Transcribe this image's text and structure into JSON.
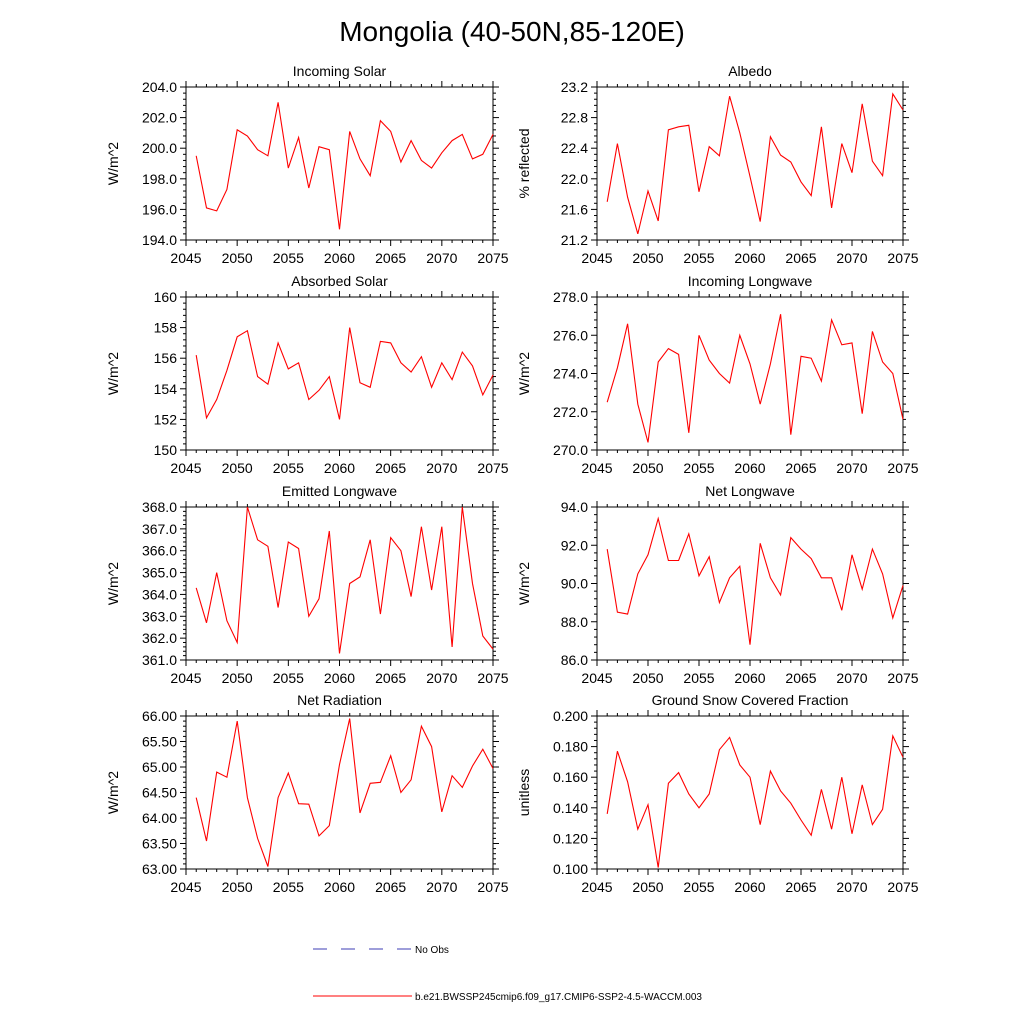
{
  "page_title": "Mongolia (40-50N,85-120E)",
  "legend": {
    "obs_label": "No Obs",
    "obs_color": "#3d3db5",
    "model_label": "b.e21.BWSSP245cmip6.f09_g17.CMIP6-SSP2-4.5-WACCM.003",
    "model_color": "#ff0000"
  },
  "chart_data": [
    {
      "type": "line",
      "title": "Incoming Solar",
      "ylabel": "W/m^2",
      "xlim": [
        2045,
        2075
      ],
      "ylim": [
        194.0,
        204.0
      ],
      "yticks": [
        "194.0",
        "196.0",
        "198.0",
        "200.0",
        "202.0",
        "204.0"
      ],
      "xticks": [
        "2045",
        "2050",
        "2055",
        "2060",
        "2065",
        "2070",
        "2075"
      ],
      "x": [
        2046,
        2047,
        2048,
        2049,
        2050,
        2051,
        2052,
        2053,
        2054,
        2055,
        2056,
        2057,
        2058,
        2059,
        2060,
        2061,
        2062,
        2063,
        2064,
        2065,
        2066,
        2067,
        2068,
        2069,
        2070,
        2071,
        2072,
        2073,
        2074,
        2075
      ],
      "values": [
        199.5,
        196.1,
        195.9,
        197.3,
        201.2,
        200.8,
        199.9,
        199.5,
        203.0,
        198.7,
        200.7,
        197.4,
        200.1,
        199.9,
        194.7,
        201.1,
        199.3,
        198.2,
        201.8,
        201.1,
        199.1,
        200.5,
        199.2,
        198.7,
        199.7,
        200.5,
        200.9,
        199.3,
        199.6,
        200.9
      ],
      "color": "#ff0000"
    },
    {
      "type": "line",
      "title": "Albedo",
      "ylabel": "% reflected",
      "xlim": [
        2045,
        2075
      ],
      "ylim": [
        21.2,
        23.2
      ],
      "yticks": [
        "21.2",
        "21.6",
        "22.0",
        "22.4",
        "22.8",
        "23.2"
      ],
      "xticks": [
        "2045",
        "2050",
        "2055",
        "2060",
        "2065",
        "2070",
        "2075"
      ],
      "x": [
        2046,
        2047,
        2048,
        2049,
        2050,
        2051,
        2052,
        2053,
        2054,
        2055,
        2056,
        2057,
        2058,
        2059,
        2060,
        2061,
        2062,
        2063,
        2064,
        2065,
        2066,
        2067,
        2068,
        2069,
        2070,
        2071,
        2072,
        2073,
        2074,
        2075
      ],
      "values": [
        21.7,
        22.46,
        21.76,
        21.28,
        21.84,
        21.45,
        22.64,
        22.68,
        22.7,
        21.83,
        22.42,
        22.3,
        23.08,
        22.6,
        22.03,
        21.44,
        22.55,
        22.31,
        22.22,
        21.96,
        21.78,
        22.68,
        21.62,
        22.46,
        22.08,
        22.98,
        22.23,
        22.04,
        23.11,
        22.9
      ],
      "color": "#ff0000"
    },
    {
      "type": "line",
      "title": "Absorbed Solar",
      "ylabel": "W/m^2",
      "xlim": [
        2045,
        2075
      ],
      "ylim": [
        150,
        160
      ],
      "yticks": [
        "150",
        "152",
        "154",
        "156",
        "158",
        "160"
      ],
      "xticks": [
        "2045",
        "2050",
        "2055",
        "2060",
        "2065",
        "2070",
        "2075"
      ],
      "x": [
        2046,
        2047,
        2048,
        2049,
        2050,
        2051,
        2052,
        2053,
        2054,
        2055,
        2056,
        2057,
        2058,
        2059,
        2060,
        2061,
        2062,
        2063,
        2064,
        2065,
        2066,
        2067,
        2068,
        2069,
        2070,
        2071,
        2072,
        2073,
        2074,
        2075
      ],
      "values": [
        156.2,
        152.1,
        153.3,
        155.2,
        157.4,
        157.8,
        154.8,
        154.3,
        157.0,
        155.3,
        155.7,
        153.3,
        153.9,
        154.8,
        152.0,
        158.0,
        154.4,
        154.1,
        157.1,
        157.0,
        155.7,
        155.1,
        156.1,
        154.1,
        155.7,
        154.6,
        156.4,
        155.5,
        153.6,
        154.9
      ],
      "color": "#ff0000"
    },
    {
      "type": "line",
      "title": "Incoming Longwave",
      "ylabel": "W/m^2",
      "xlim": [
        2045,
        2075
      ],
      "ylim": [
        270.0,
        278.0
      ],
      "yticks": [
        "270.0",
        "272.0",
        "274.0",
        "276.0",
        "278.0"
      ],
      "xticks": [
        "2045",
        "2050",
        "2055",
        "2060",
        "2065",
        "2070",
        "2075"
      ],
      "x": [
        2046,
        2047,
        2048,
        2049,
        2050,
        2051,
        2052,
        2053,
        2054,
        2055,
        2056,
        2057,
        2058,
        2059,
        2060,
        2061,
        2062,
        2063,
        2064,
        2065,
        2066,
        2067,
        2068,
        2069,
        2070,
        2071,
        2072,
        2073,
        2074,
        2075
      ],
      "values": [
        272.5,
        274.3,
        276.6,
        272.4,
        270.4,
        274.6,
        275.3,
        275.0,
        270.9,
        276.0,
        274.7,
        274.0,
        273.5,
        276.0,
        274.5,
        272.4,
        274.5,
        277.1,
        270.8,
        274.9,
        274.8,
        273.6,
        276.8,
        275.5,
        275.6,
        271.9,
        276.2,
        274.6,
        274.0,
        271.6
      ],
      "color": "#ff0000"
    },
    {
      "type": "line",
      "title": "Emitted Longwave",
      "ylabel": "W/m^2",
      "xlim": [
        2045,
        2075
      ],
      "ylim": [
        361.0,
        368.0
      ],
      "yticks": [
        "361.0",
        "362.0",
        "363.0",
        "364.0",
        "365.0",
        "366.0",
        "367.0",
        "368.0"
      ],
      "xticks": [
        "2045",
        "2050",
        "2055",
        "2060",
        "2065",
        "2070",
        "2075"
      ],
      "x": [
        2046,
        2047,
        2048,
        2049,
        2050,
        2051,
        2052,
        2053,
        2054,
        2055,
        2056,
        2057,
        2058,
        2059,
        2060,
        2061,
        2062,
        2063,
        2064,
        2065,
        2066,
        2067,
        2068,
        2069,
        2070,
        2071,
        2072,
        2073,
        2074,
        2075
      ],
      "values": [
        364.3,
        362.7,
        365.0,
        362.8,
        361.8,
        368.0,
        366.5,
        366.2,
        363.4,
        366.4,
        366.1,
        363.0,
        363.8,
        366.9,
        361.3,
        364.5,
        364.8,
        366.5,
        363.1,
        366.6,
        366.0,
        363.9,
        367.1,
        364.2,
        367.1,
        361.6,
        368.0,
        364.5,
        362.1,
        361.5
      ],
      "color": "#ff0000"
    },
    {
      "type": "line",
      "title": "Net Longwave",
      "ylabel": "W/m^2",
      "xlim": [
        2045,
        2075
      ],
      "ylim": [
        86.0,
        94.0
      ],
      "yticks": [
        "86.0",
        "88.0",
        "90.0",
        "92.0",
        "94.0"
      ],
      "xticks": [
        "2045",
        "2050",
        "2055",
        "2060",
        "2065",
        "2070",
        "2075"
      ],
      "x": [
        2046,
        2047,
        2048,
        2049,
        2050,
        2051,
        2052,
        2053,
        2054,
        2055,
        2056,
        2057,
        2058,
        2059,
        2060,
        2061,
        2062,
        2063,
        2064,
        2065,
        2066,
        2067,
        2068,
        2069,
        2070,
        2071,
        2072,
        2073,
        2074,
        2075
      ],
      "values": [
        91.8,
        88.5,
        88.4,
        90.5,
        91.5,
        93.4,
        91.2,
        91.2,
        92.6,
        90.4,
        91.4,
        89.0,
        90.3,
        90.9,
        86.8,
        92.1,
        90.3,
        89.4,
        92.4,
        91.8,
        91.3,
        90.3,
        90.3,
        88.6,
        91.5,
        89.7,
        91.8,
        90.5,
        88.2,
        89.9
      ],
      "color": "#ff0000"
    },
    {
      "type": "line",
      "title": "Net Radiation",
      "ylabel": "W/m^2",
      "xlim": [
        2045,
        2075
      ],
      "ylim": [
        63.0,
        66.0
      ],
      "yticks": [
        "63.00",
        "63.50",
        "64.00",
        "64.50",
        "65.00",
        "65.50",
        "66.00"
      ],
      "xticks": [
        "2045",
        "2050",
        "2055",
        "2060",
        "2065",
        "2070",
        "2075"
      ],
      "x": [
        2046,
        2047,
        2048,
        2049,
        2050,
        2051,
        2052,
        2053,
        2054,
        2055,
        2056,
        2057,
        2058,
        2059,
        2060,
        2061,
        2062,
        2063,
        2064,
        2065,
        2066,
        2067,
        2068,
        2069,
        2070,
        2071,
        2072,
        2073,
        2074,
        2075
      ],
      "values": [
        64.4,
        63.55,
        64.9,
        64.8,
        65.9,
        64.4,
        63.6,
        63.05,
        64.4,
        64.88,
        64.28,
        64.27,
        63.65,
        63.85,
        65.05,
        65.95,
        64.1,
        64.68,
        64.7,
        65.22,
        64.5,
        64.75,
        65.8,
        65.4,
        64.12,
        64.83,
        64.6,
        65.02,
        65.35,
        64.97
      ],
      "color": "#ff0000"
    },
    {
      "type": "line",
      "title": "Ground Snow Covered Fraction",
      "ylabel": "unitless",
      "xlim": [
        2045,
        2075
      ],
      "ylim": [
        0.1,
        0.2
      ],
      "yticks": [
        "0.100",
        "0.120",
        "0.140",
        "0.160",
        "0.180",
        "0.200"
      ],
      "xticks": [
        "2045",
        "2050",
        "2055",
        "2060",
        "2065",
        "2070",
        "2075"
      ],
      "x": [
        2046,
        2047,
        2048,
        2049,
        2050,
        2051,
        2052,
        2053,
        2054,
        2055,
        2056,
        2057,
        2058,
        2059,
        2060,
        2061,
        2062,
        2063,
        2064,
        2065,
        2066,
        2067,
        2068,
        2069,
        2070,
        2071,
        2072,
        2073,
        2074,
        2075
      ],
      "values": [
        0.136,
        0.177,
        0.157,
        0.126,
        0.142,
        0.101,
        0.156,
        0.163,
        0.149,
        0.14,
        0.149,
        0.178,
        0.186,
        0.168,
        0.16,
        0.129,
        0.164,
        0.151,
        0.143,
        0.132,
        0.122,
        0.152,
        0.126,
        0.16,
        0.123,
        0.155,
        0.129,
        0.139,
        0.187,
        0.173
      ],
      "color": "#ff0000"
    }
  ]
}
